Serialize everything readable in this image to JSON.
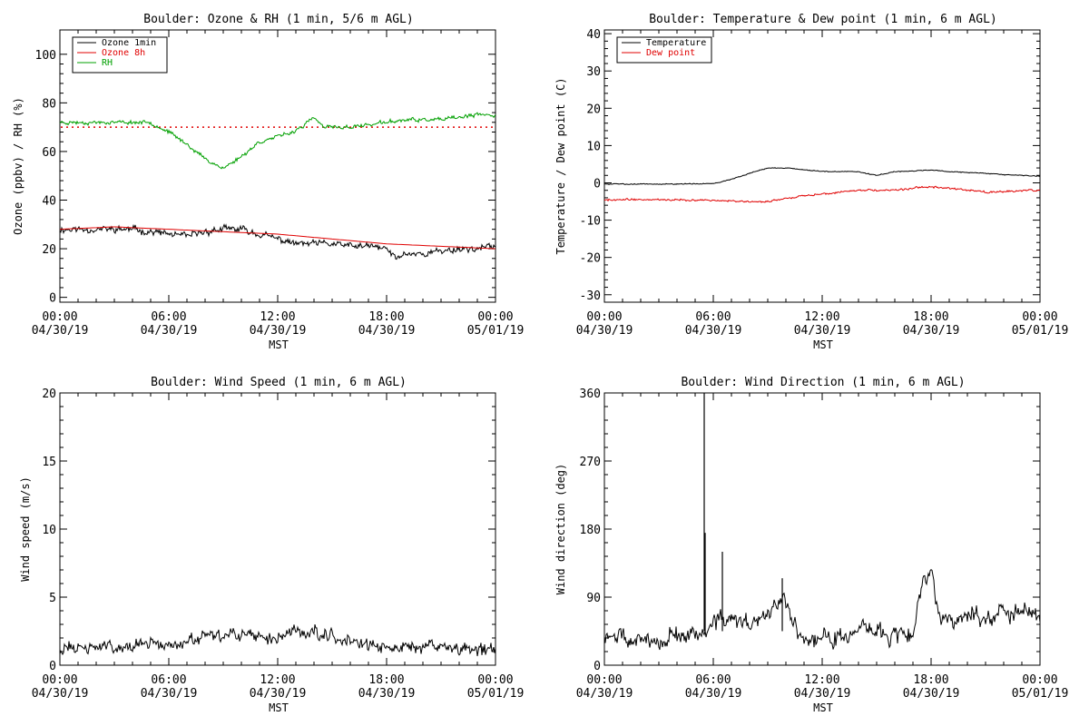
{
  "chart_data": [
    {
      "type": "line",
      "title": "Boulder: Ozone & RH (1 min, 5/6 m AGL)",
      "xlabel": "MST",
      "ylabel": "Ozone (ppbv) / RH (%)",
      "xlim": [
        0,
        24
      ],
      "ylim": [
        -2,
        110
      ],
      "yticks": [
        0,
        20,
        40,
        60,
        80,
        100
      ],
      "xticks": [
        0,
        6,
        12,
        18,
        24
      ],
      "xtick_labels": [
        [
          "00:00",
          "04/30/19"
        ],
        [
          "06:00",
          "04/30/19"
        ],
        [
          "12:00",
          "04/30/19"
        ],
        [
          "18:00",
          "04/30/19"
        ],
        [
          "00:00",
          "05/01/19"
        ]
      ],
      "legend": "top-left",
      "grid": false,
      "reference_line": {
        "y": 70,
        "color": "#e00000",
        "style": "dotted"
      },
      "series": [
        {
          "name": "Ozone 1min",
          "color": "#000000",
          "noise": 1.6,
          "seed": 11,
          "x": [
            0,
            1,
            2,
            3,
            4,
            5,
            6,
            7,
            8,
            9,
            10,
            11,
            12,
            13,
            14,
            15,
            16,
            17,
            18,
            18.5,
            19,
            20,
            21,
            22,
            23,
            24
          ],
          "y": [
            28,
            28,
            28,
            28,
            28,
            27,
            26,
            25,
            27,
            28,
            28,
            26,
            24,
            22,
            22,
            22,
            21,
            21,
            20,
            16,
            18,
            18,
            19,
            20,
            20,
            21
          ]
        },
        {
          "name": "Ozone 8h",
          "color": "#e00000",
          "noise": 0,
          "x": [
            0,
            3,
            6,
            9,
            12,
            15,
            18,
            21,
            24
          ],
          "y": [
            28,
            29,
            28,
            27,
            26,
            24,
            22,
            21,
            20
          ]
        },
        {
          "name": "RH",
          "color": "#00a000",
          "noise": 0.9,
          "seed": 23,
          "x": [
            0,
            2,
            5,
            6,
            7,
            8,
            9,
            10,
            11,
            12,
            12.8,
            13.5,
            14,
            14.5,
            15,
            16,
            17,
            18,
            19,
            20,
            21,
            22,
            23,
            24
          ],
          "y": [
            72,
            72,
            72,
            68,
            63,
            57,
            53,
            58,
            64,
            66,
            68,
            71,
            74,
            70,
            70,
            70,
            71,
            72,
            73,
            73,
            73,
            74,
            75,
            75
          ]
        }
      ]
    },
    {
      "type": "line",
      "title": "Boulder: Temperature & Dew point (1 min, 6 m AGL)",
      "xlabel": "MST",
      "ylabel": "Temperature / Dew point (C)",
      "xlim": [
        0,
        24
      ],
      "ylim": [
        -32,
        41
      ],
      "yticks": [
        -30,
        -20,
        -10,
        0,
        10,
        20,
        30,
        40
      ],
      "xticks": [
        0,
        6,
        12,
        18,
        24
      ],
      "xtick_labels": [
        [
          "00:00",
          "04/30/19"
        ],
        [
          "06:00",
          "04/30/19"
        ],
        [
          "12:00",
          "04/30/19"
        ],
        [
          "18:00",
          "04/30/19"
        ],
        [
          "00:00",
          "05/01/19"
        ]
      ],
      "legend": "top-left",
      "grid": false,
      "series": [
        {
          "name": "Temperature",
          "color": "#000000",
          "noise": 0.15,
          "seed": 5,
          "x": [
            0,
            2,
            4,
            6,
            7,
            8,
            9,
            10,
            11,
            12,
            13,
            14,
            15,
            16,
            17,
            18,
            19,
            20,
            21,
            22,
            23,
            24
          ],
          "y": [
            -0.3,
            -0.3,
            -0.3,
            -0.2,
            1,
            2.5,
            4,
            4,
            3.5,
            3,
            3,
            3,
            2,
            3,
            3.2,
            3.5,
            3,
            2.8,
            2.5,
            2.2,
            2,
            1.8
          ]
        },
        {
          "name": "Dew point",
          "color": "#e00000",
          "noise": 0.3,
          "seed": 9,
          "x": [
            0,
            2,
            4,
            6,
            8,
            9,
            10,
            11,
            12,
            13,
            14,
            15,
            16,
            17,
            18,
            19,
            20,
            21,
            22,
            23,
            24
          ],
          "y": [
            -4.5,
            -4.5,
            -4.5,
            -4.7,
            -5,
            -5,
            -4.2,
            -3.5,
            -3,
            -2.5,
            -2,
            -2,
            -2,
            -1.5,
            -1,
            -1.5,
            -2,
            -2.5,
            -2.5,
            -2,
            -2
          ]
        }
      ]
    },
    {
      "type": "line",
      "title": "Boulder: Wind Speed (1 min, 6 m AGL)",
      "xlabel": "MST",
      "ylabel": "Wind speed (m/s)",
      "xlim": [
        0,
        24
      ],
      "ylim": [
        0,
        20
      ],
      "yticks": [
        0,
        5,
        10,
        15,
        20
      ],
      "xticks": [
        0,
        6,
        12,
        18,
        24
      ],
      "xtick_labels": [
        [
          "00:00",
          "04/30/19"
        ],
        [
          "06:00",
          "04/30/19"
        ],
        [
          "12:00",
          "04/30/19"
        ],
        [
          "18:00",
          "04/30/19"
        ],
        [
          "00:00",
          "05/01/19"
        ]
      ],
      "grid": false,
      "series": [
        {
          "name": "",
          "color": "#000000",
          "noise": 0.55,
          "seed": 31,
          "ymin_clip": 0.2,
          "x": [
            0,
            2,
            4,
            6,
            7,
            8,
            10,
            12,
            13,
            14,
            15,
            16,
            17,
            18,
            19,
            20,
            21,
            22,
            23,
            24
          ],
          "y": [
            1.2,
            1.3,
            1.5,
            1.5,
            1.7,
            2,
            2.2,
            2,
            2.5,
            2.5,
            2.2,
            1.8,
            1.5,
            1.1,
            1.4,
            1.4,
            1.3,
            1.2,
            1.1,
            1.2
          ]
        }
      ]
    },
    {
      "type": "line",
      "title": "Boulder: Wind Direction (1 min, 6 m AGL)",
      "xlabel": "MST",
      "ylabel": "Wind direction (deg)",
      "xlim": [
        0,
        24
      ],
      "ylim": [
        0,
        360
      ],
      "yticks": [
        0,
        90,
        180,
        270,
        360
      ],
      "xticks": [
        0,
        6,
        12,
        18,
        24
      ],
      "xtick_labels": [
        [
          "00:00",
          "04/30/19"
        ],
        [
          "06:00",
          "04/30/19"
        ],
        [
          "12:00",
          "04/30/19"
        ],
        [
          "18:00",
          "04/30/19"
        ],
        [
          "00:00",
          "05/01/19"
        ]
      ],
      "grid": false,
      "spikes": [
        {
          "x": 5.5,
          "y": 360
        },
        {
          "x": 5.55,
          "y": 175
        },
        {
          "x": 6.5,
          "y": 150
        },
        {
          "x": 9.8,
          "y": 115
        }
      ],
      "series": [
        {
          "name": "",
          "color": "#000000",
          "noise": 14,
          "seed": 47,
          "ymin_clip": 0,
          "x": [
            0,
            1,
            2,
            3,
            4,
            5,
            5.5,
            6,
            7,
            8,
            9,
            9.8,
            10.5,
            11,
            12,
            13,
            14,
            15,
            16,
            17,
            17.5,
            18,
            18.5,
            19,
            20,
            21,
            22,
            23,
            24
          ],
          "y": [
            40,
            35,
            30,
            35,
            40,
            40,
            40,
            55,
            60,
            55,
            65,
            95,
            50,
            35,
            35,
            40,
            45,
            45,
            40,
            45,
            110,
            115,
            70,
            60,
            65,
            65,
            70,
            70,
            65
          ]
        }
      ]
    }
  ]
}
